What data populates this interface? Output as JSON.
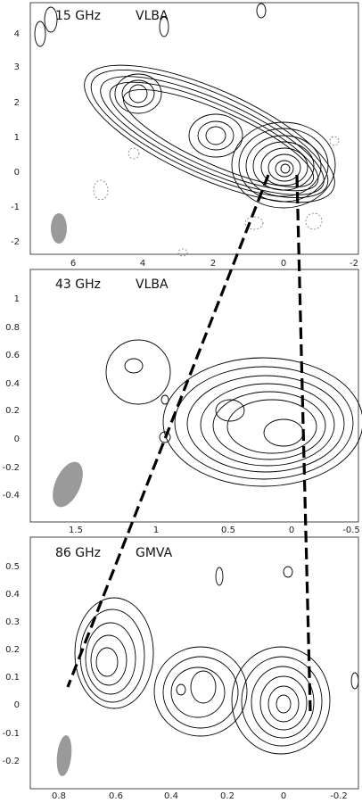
{
  "panels": [
    {
      "id": "p15",
      "label_freq": "15 GHz",
      "label_array": "VLBA",
      "x_ticks": [
        "6",
        "4",
        "2",
        "0",
        "-2"
      ],
      "y_ticks": [
        "4",
        "3",
        "2",
        "1",
        "0",
        "-1",
        "-2"
      ]
    },
    {
      "id": "p43",
      "label_freq": "43 GHz",
      "label_array": "VLBA",
      "x_ticks": [
        "1.5",
        "1",
        "0.5",
        "0",
        "-0.5"
      ],
      "y_ticks": [
        "1",
        "0.8",
        "0.6",
        "0.4",
        "0.2",
        "0",
        "-0.2",
        "-0.4"
      ]
    },
    {
      "id": "p86",
      "label_freq": "86 GHz",
      "label_array": "GMVA",
      "x_ticks": [
        "0.8",
        "0.6",
        "0.4",
        "0.2",
        "0",
        "-0.2"
      ],
      "y_ticks": [
        "0.5",
        "0.4",
        "0.3",
        "0.2",
        "0.1",
        "0",
        "-0.1",
        "-0.2"
      ]
    }
  ]
}
